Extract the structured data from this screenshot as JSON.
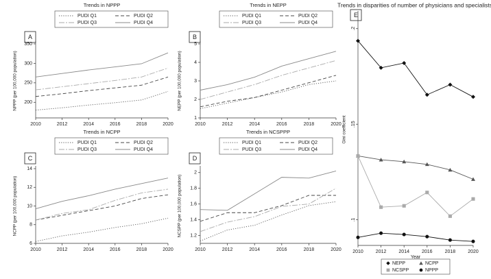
{
  "chart_data": [
    {
      "type": "line",
      "label": "A",
      "title": "Trends in NPPP",
      "y_label": "NPPP (per 100,000 population)",
      "x": [
        2010,
        2012,
        2014,
        2016,
        2018,
        2020
      ],
      "xlim": [
        2010,
        2020
      ],
      "xticks": [
        2010,
        2012,
        2014,
        2016,
        2018,
        2020
      ],
      "ylim": [
        160,
        350
      ],
      "yticks": [
        200,
        250,
        300,
        350
      ],
      "series": [
        {
          "name": "PUDI Q1",
          "color": "#555555",
          "dash": "dotted",
          "values": [
            180,
            186,
            193,
            199,
            206,
            228
          ]
        },
        {
          "name": "PUDI Q2",
          "color": "#444444",
          "dash": "dashed",
          "values": [
            215,
            222,
            230,
            237,
            244,
            265
          ]
        },
        {
          "name": "PUDI Q3",
          "color": "#aaaaaa",
          "dash": "dashdot",
          "values": [
            232,
            240,
            248,
            256,
            265,
            288
          ]
        },
        {
          "name": "PUDI Q4",
          "color": "#888888",
          "dash": "solid",
          "values": [
            265,
            274,
            283,
            291,
            299,
            327
          ]
        }
      ]
    },
    {
      "type": "line",
      "label": "B",
      "title": "Trends in NEPP",
      "y_label": "NEPP (per 100,000 population)",
      "x": [
        2010,
        2012,
        2014,
        2016,
        2018,
        2020
      ],
      "xlim": [
        2010,
        2020
      ],
      "xticks": [
        2010,
        2012,
        2014,
        2016,
        2018,
        2020
      ],
      "ylim": [
        1,
        5
      ],
      "yticks": [
        1,
        2,
        3,
        4,
        5
      ],
      "series": [
        {
          "name": "PUDI Q1",
          "color": "#555555",
          "dash": "dotted",
          "values": [
            1.5,
            1.8,
            2.1,
            2.4,
            2.8,
            3.0
          ]
        },
        {
          "name": "PUDI Q2",
          "color": "#444444",
          "dash": "dashed",
          "values": [
            1.6,
            1.9,
            2.1,
            2.5,
            2.9,
            3.3
          ]
        },
        {
          "name": "PUDI Q3",
          "color": "#aaaaaa",
          "dash": "dashdot",
          "values": [
            2.0,
            2.4,
            2.8,
            3.3,
            3.7,
            4.1
          ]
        },
        {
          "name": "PUDI Q4",
          "color": "#888888",
          "dash": "solid",
          "values": [
            2.5,
            2.8,
            3.2,
            3.8,
            4.2,
            4.6
          ]
        }
      ]
    },
    {
      "type": "line",
      "label": "C",
      "title": "Trends in NCPP",
      "y_label": "NCPP (per 100,000 population)",
      "x": [
        2010,
        2012,
        2014,
        2016,
        2018,
        2020
      ],
      "xlim": [
        2010,
        2020
      ],
      "xticks": [
        2010,
        2012,
        2014,
        2016,
        2018,
        2020
      ],
      "ylim": [
        6,
        14
      ],
      "yticks": [
        6,
        8,
        10,
        12,
        14
      ],
      "series": [
        {
          "name": "PUDI Q1",
          "color": "#555555",
          "dash": "dotted",
          "values": [
            6.2,
            6.8,
            7.2,
            7.7,
            8.1,
            8.7
          ]
        },
        {
          "name": "PUDI Q2",
          "color": "#444444",
          "dash": "dashed",
          "values": [
            8.5,
            9.0,
            9.5,
            10.0,
            10.8,
            11.2
          ]
        },
        {
          "name": "PUDI Q3",
          "color": "#aaaaaa",
          "dash": "dashdot",
          "values": [
            8.5,
            9.2,
            9.6,
            10.6,
            11.4,
            11.8
          ]
        },
        {
          "name": "PUDI Q4",
          "color": "#888888",
          "dash": "solid",
          "values": [
            9.7,
            10.5,
            11.1,
            11.8,
            12.4,
            13.0
          ]
        }
      ]
    },
    {
      "type": "line",
      "label": "D",
      "title": "Trends in NCSPPP",
      "y_label": "NCSPP (per 100,000 population)",
      "x": [
        2010,
        2012,
        2014,
        2016,
        2018,
        2020
      ],
      "xlim": [
        2010,
        2020
      ],
      "xticks": [
        2010,
        2012,
        2014,
        2016,
        2018,
        2020
      ],
      "ylim": [
        1.1,
        2.05
      ],
      "yticks": [
        1.2,
        1.4,
        1.6,
        1.8,
        2
      ],
      "series": [
        {
          "name": "PUDI Q1",
          "color": "#555555",
          "dash": "dotted",
          "values": [
            1.13,
            1.27,
            1.33,
            1.46,
            1.58,
            1.63
          ]
        },
        {
          "name": "PUDI Q2",
          "color": "#444444",
          "dash": "dashed",
          "values": [
            1.38,
            1.49,
            1.49,
            1.58,
            1.71,
            1.71
          ]
        },
        {
          "name": "PUDI Q3",
          "color": "#aaaaaa",
          "dash": "dashdot",
          "values": [
            1.25,
            1.37,
            1.44,
            1.57,
            1.6,
            1.8
          ]
        },
        {
          "name": "PUDI Q4",
          "color": "#888888",
          "dash": "solid",
          "values": [
            1.53,
            1.52,
            1.73,
            1.94,
            1.93,
            2.02
          ]
        }
      ]
    },
    {
      "type": "marker_line",
      "label": "E",
      "title": "Trends in disparities of number of physicians and specialists",
      "y_label": "Gini coefficient",
      "x_label": "Year",
      "x": [
        2010,
        2012,
        2014,
        2016,
        2018,
        2020
      ],
      "xlim": [
        2010,
        2020
      ],
      "xticks": [
        2010,
        2012,
        2014,
        2016,
        2018,
        2020
      ],
      "ylim": [
        0.0866,
        0.2078
      ],
      "yticks": [
        {
          "value": 0.1,
          "label": ".1"
        },
        {
          "value": 0.15,
          "label": ".15"
        },
        {
          "value": 0.2,
          "label": ".2"
        }
      ],
      "series": [
        {
          "name": "NEPP",
          "color": "#111111",
          "marker": "diamond",
          "values": [
            0.1936,
            0.1795,
            0.182,
            0.1654,
            0.1707,
            0.1643
          ]
        },
        {
          "name": "NCPP",
          "color": "#555555",
          "marker": "triangle",
          "values": [
            0.1334,
            0.1314,
            0.1304,
            0.129,
            0.1261,
            0.1212
          ]
        },
        {
          "name": "NCSPP",
          "color": "#aaaaaa",
          "marker": "square",
          "values": [
            0.1334,
            0.1066,
            0.1073,
            0.1143,
            0.1019,
            0.1109
          ]
        },
        {
          "name": "NPPP",
          "color": "#111111",
          "marker": "circle",
          "values": [
            0.0908,
            0.093,
            0.0923,
            0.0912,
            0.0894,
            0.0887
          ]
        }
      ]
    }
  ]
}
